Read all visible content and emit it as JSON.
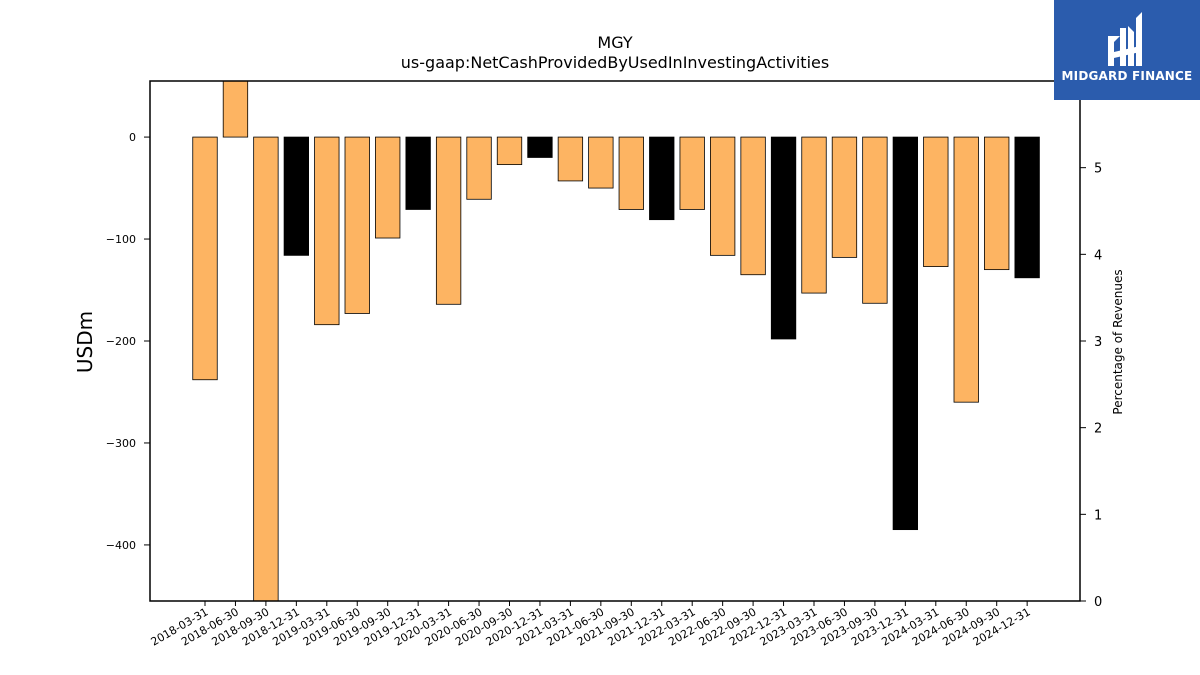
{
  "chart_data": {
    "type": "bar",
    "title": "MGY",
    "subtitle": "us-gaap:NetCashProvidedByUsedInInvestingActivities",
    "ylabel": "USDm",
    "y2label": "Percentage of Revenues",
    "ylim": [
      -455,
      55
    ],
    "y2lim": [
      0,
      6
    ],
    "yticks": [
      0,
      -100,
      -200,
      -300,
      -400
    ],
    "y2ticks": [
      0,
      1,
      2,
      3,
      4,
      5
    ],
    "grid": false,
    "colors": {
      "quarter": "#fdb462",
      "year_end": "#000000"
    },
    "categories": [
      "2018-03-31",
      "2018-06-30",
      "2018-09-30",
      "2018-12-31",
      "2019-03-31",
      "2019-06-30",
      "2019-09-30",
      "2019-12-31",
      "2020-03-31",
      "2020-06-30",
      "2020-09-30",
      "2020-12-31",
      "2021-03-31",
      "2021-06-30",
      "2021-09-30",
      "2021-12-31",
      "2022-03-31",
      "2022-06-30",
      "2022-09-30",
      "2022-12-31",
      "2023-03-31",
      "2023-06-30",
      "2023-09-30",
      "2023-12-31",
      "2024-03-31",
      "2024-06-30",
      "2024-09-30",
      "2024-12-31"
    ],
    "values": [
      -238,
      60,
      -470,
      -116,
      -184,
      -173,
      -99,
      -71,
      -164,
      -61,
      -27,
      -20,
      -43,
      -50,
      -71,
      -81,
      -71,
      -116,
      -135,
      -198,
      -153,
      -118,
      -163,
      -385,
      -127,
      -260,
      -130,
      -138
    ],
    "year_end": [
      false,
      false,
      false,
      true,
      false,
      false,
      false,
      true,
      false,
      false,
      false,
      true,
      false,
      false,
      false,
      true,
      false,
      false,
      false,
      true,
      false,
      false,
      false,
      true,
      false,
      false,
      false,
      true
    ]
  },
  "logo": {
    "text": "MIDGARD FINANCE",
    "icon": "midgard-logo-icon"
  }
}
